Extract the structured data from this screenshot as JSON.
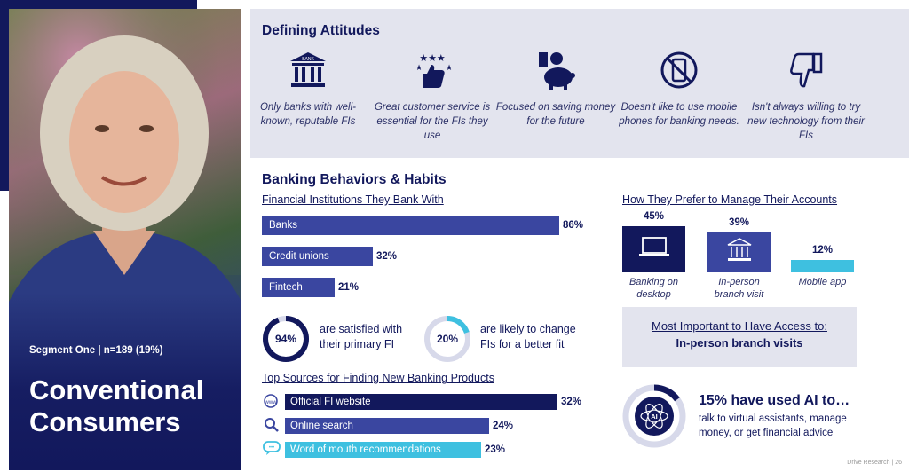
{
  "segment": {
    "label": "Segment One | n=189 (19%)",
    "title": "Conventional Consumers"
  },
  "attitudes": {
    "title": "Defining Attitudes",
    "items": [
      {
        "icon": "bank-icon",
        "text": "Only banks with well-known, reputable FIs"
      },
      {
        "icon": "thumbs-up-stars-icon",
        "text": "Great customer service is essential for the FIs they use"
      },
      {
        "icon": "piggy-bank-icon",
        "text": "Focused on saving money for the future"
      },
      {
        "icon": "no-phone-icon",
        "text": "Doesn't like to use mobile phones for banking needs."
      },
      {
        "icon": "thumbs-down-icon",
        "text": "Isn't always willing to try new technology from their FIs"
      }
    ]
  },
  "behaviors": {
    "title": "Banking Behaviors & Habits",
    "institutions": {
      "title": "Financial Institutions They Bank With",
      "items": [
        {
          "label": "Banks",
          "value": 86,
          "display": "86%"
        },
        {
          "label": "Credit unions",
          "value": 32,
          "display": "32%"
        },
        {
          "label": "Fintech",
          "value": 21,
          "display": "21%"
        }
      ]
    },
    "donuts": [
      {
        "value": 94,
        "display": "94%",
        "text1": "are satisfied with",
        "text2": "their primary FI",
        "color": "#12185c"
      },
      {
        "value": 20,
        "display": "20%",
        "text1": "are likely to change",
        "text2": "FIs for a better fit",
        "color": "#3ec0e0"
      }
    ],
    "sources": {
      "title": "Top Sources for Finding New Banking Products",
      "items": [
        {
          "icon": "www-icon",
          "label": "Official FI website",
          "value": 32,
          "display": "32%",
          "color": "#12185c"
        },
        {
          "icon": "magnifier-icon",
          "label": "Online search",
          "value": 24,
          "display": "24%",
          "color": "#3a46a0"
        },
        {
          "icon": "chat-bubble-icon",
          "label": "Word of mouth recommendations",
          "value": 23,
          "display": "23%",
          "color": "#3ec0e0"
        }
      ]
    }
  },
  "management": {
    "title": "How They Prefer to Manage Their Accounts",
    "items": [
      {
        "icon": "laptop-icon",
        "value": 45,
        "display": "45%",
        "label": "Banking on desktop",
        "color": "#12185c"
      },
      {
        "icon": "bank-icon",
        "value": 39,
        "display": "39%",
        "label": "In-person branch visit",
        "color": "#3a46a0"
      },
      {
        "icon": "",
        "value": 12,
        "display": "12%",
        "label": "Mobile app",
        "color": "#3ec0e0"
      }
    ]
  },
  "access": {
    "title": "Most Important to Have Access to:",
    "value": "In-person branch visits"
  },
  "ai": {
    "icon_text": "AI",
    "headline": "15% have used AI to…",
    "detail": "talk to virtual assistants, manage money, or get financial advice",
    "value": 15
  },
  "footer": "Drive Research | 26"
}
